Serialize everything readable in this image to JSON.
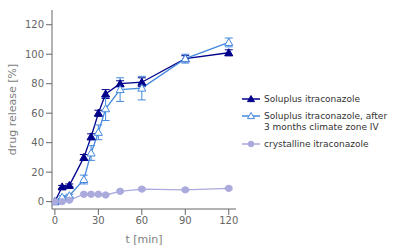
{
  "chart_data": {
    "type": "line",
    "xlabel": "t [min]",
    "ylabel": "drug release [%]",
    "xlim": [
      -2,
      125
    ],
    "ylim": [
      -5,
      130
    ],
    "xticks": [
      0,
      30,
      60,
      90,
      120
    ],
    "yticks": [
      0,
      20,
      40,
      60,
      80,
      100,
      120
    ],
    "grid": false,
    "legend": "right",
    "x": [
      0,
      5,
      10,
      20,
      25,
      30,
      35,
      45,
      60,
      90,
      120
    ],
    "series": [
      {
        "name": "Soluplus itraconazole",
        "color": "#00008B",
        "marker": "triangle",
        "values": [
          0,
          10,
          11,
          30,
          44,
          60,
          73,
          80,
          81,
          97,
          101
        ],
        "yerr": [
          0.1,
          1,
          1,
          2,
          2,
          2,
          3,
          2,
          3,
          2,
          2
        ]
      },
      {
        "name": "Soluplus itraconazole, after\n3 months climate zone IV",
        "color": "#4488DD",
        "marker": "open-triangle",
        "values": [
          0,
          3,
          4,
          15,
          33,
          47,
          63,
          76,
          77,
          97,
          108
        ],
        "yerr": [
          0.1,
          1,
          1,
          3,
          5,
          5,
          8,
          8,
          8,
          3,
          3
        ]
      },
      {
        "name": "crystalline itraconazole",
        "color": "#AAAADD",
        "marker": "circle",
        "values": [
          0,
          0,
          1,
          5,
          5,
          5,
          4.5,
          7,
          8.5,
          8,
          9
        ],
        "yerr": [
          0.1,
          0.3,
          0.5,
          0.8,
          0.5,
          0.5,
          0.5,
          0.7,
          0.8,
          0.7,
          0.7
        ]
      }
    ]
  }
}
